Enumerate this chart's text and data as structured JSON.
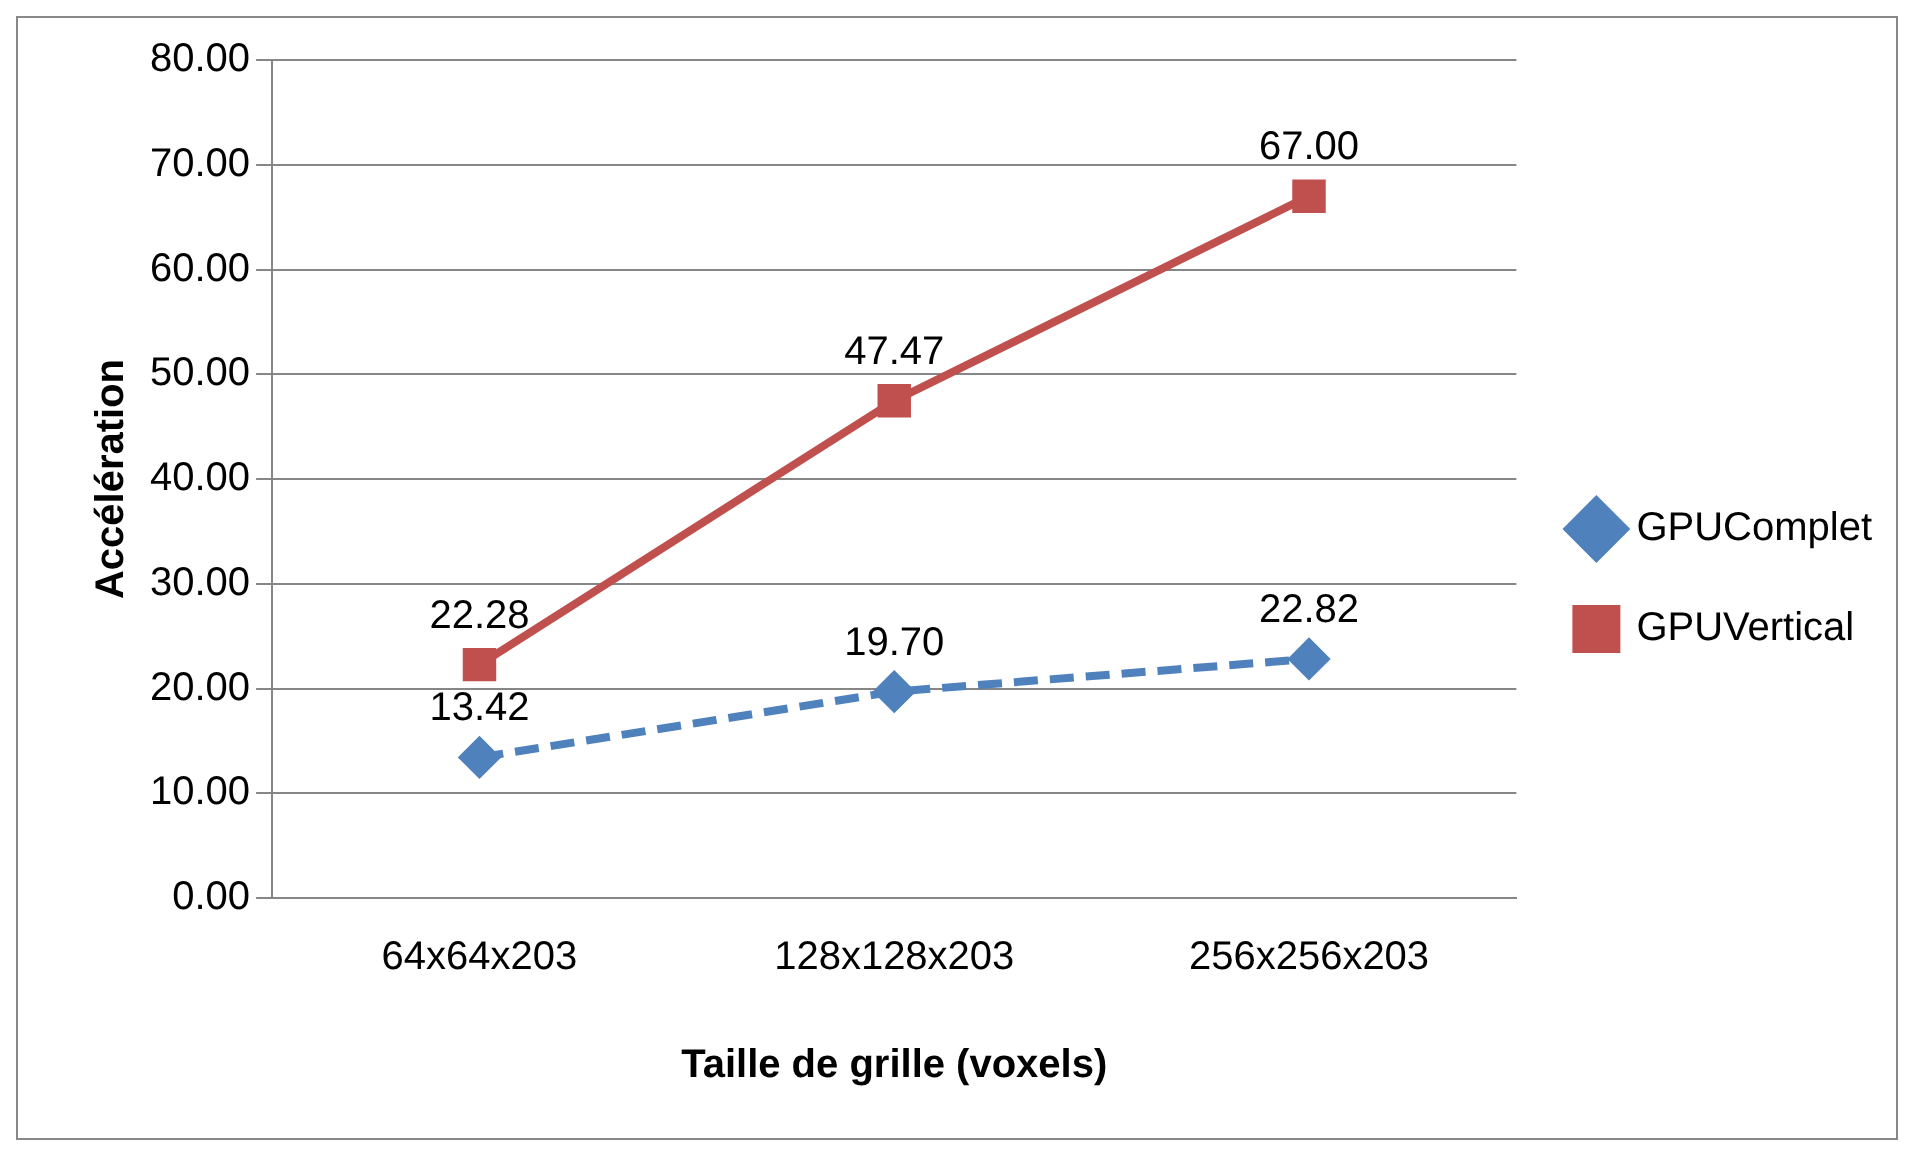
{
  "chart_data": {
    "type": "line",
    "xlabel": "Taille de grille (voxels)",
    "ylabel": "Accélération",
    "categories": [
      "64x64x203",
      "128x128x203",
      "256x256x203"
    ],
    "series": [
      {
        "name": "GPUComplet",
        "color": "#4f81bd",
        "values": [
          13.42,
          19.7,
          22.82
        ],
        "value_labels": [
          "13.42",
          "19.70",
          "22.82"
        ],
        "marker": "diamond",
        "line_style": "dashed"
      },
      {
        "name": "GPUVertical",
        "color": "#c0504d",
        "values": [
          22.28,
          47.47,
          67.0
        ],
        "value_labels": [
          "22.28",
          "47.47",
          "67.00"
        ],
        "marker": "square",
        "line_style": "solid"
      }
    ],
    "ylim": [
      0,
      80
    ],
    "yticks": [
      {
        "value": 0,
        "label": "0.00"
      },
      {
        "value": 10,
        "label": "10.00"
      },
      {
        "value": 20,
        "label": "20.00"
      },
      {
        "value": 30,
        "label": "30.00"
      },
      {
        "value": 40,
        "label": "40.00"
      },
      {
        "value": 50,
        "label": "50.00"
      },
      {
        "value": 60,
        "label": "60.00"
      },
      {
        "value": 70,
        "label": "70.00"
      },
      {
        "value": 80,
        "label": "80.00"
      }
    ],
    "grid": "y",
    "legend": "right"
  }
}
